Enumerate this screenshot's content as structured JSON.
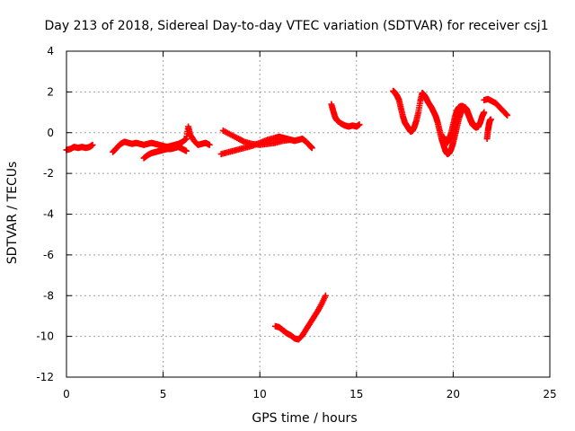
{
  "chart_data": {
    "type": "scatter",
    "title": "Day 213 of 2018, Sidereal Day-to-day VTEC variation (SDTVAR) for receiver csj1",
    "xlabel": "GPS time / hours",
    "ylabel": "SDTVAR / TECUs",
    "xlim": [
      0,
      25
    ],
    "ylim": [
      -12,
      4
    ],
    "xticks": [
      0,
      5,
      10,
      15,
      20,
      25
    ],
    "yticks": [
      -12,
      -10,
      -8,
      -6,
      -4,
      -2,
      0,
      2,
      4
    ],
    "grid": true,
    "marker": "+",
    "color": "#ff0000",
    "series": [
      {
        "name": "SDTVAR",
        "segments": [
          [
            [
              0.0,
              -0.85
            ],
            [
              0.2,
              -0.8
            ],
            [
              0.4,
              -0.7
            ],
            [
              0.6,
              -0.75
            ],
            [
              0.8,
              -0.7
            ],
            [
              1.0,
              -0.75
            ],
            [
              1.2,
              -0.7
            ],
            [
              1.35,
              -0.6
            ]
          ],
          [
            [
              2.4,
              -0.95
            ],
            [
              2.6,
              -0.75
            ],
            [
              2.8,
              -0.55
            ],
            [
              3.0,
              -0.45
            ],
            [
              3.2,
              -0.5
            ],
            [
              3.4,
              -0.55
            ],
            [
              3.6,
              -0.5
            ],
            [
              3.8,
              -0.55
            ],
            [
              4.0,
              -0.6
            ],
            [
              4.2,
              -0.55
            ],
            [
              4.4,
              -0.5
            ],
            [
              4.6,
              -0.55
            ],
            [
              4.8,
              -0.6
            ],
            [
              5.0,
              -0.65
            ],
            [
              5.2,
              -0.7
            ],
            [
              5.4,
              -0.65
            ],
            [
              5.6,
              -0.6
            ],
            [
              5.8,
              -0.55
            ],
            [
              6.0,
              -0.45
            ],
            [
              6.2,
              -0.3
            ],
            [
              6.3,
              0.3
            ],
            [
              6.4,
              -0.1
            ],
            [
              6.6,
              -0.4
            ],
            [
              6.8,
              -0.6
            ],
            [
              7.0,
              -0.55
            ],
            [
              7.2,
              -0.5
            ],
            [
              7.4,
              -0.6
            ]
          ],
          [
            [
              4.0,
              -1.25
            ],
            [
              4.2,
              -1.1
            ],
            [
              4.4,
              -1.0
            ],
            [
              4.6,
              -0.95
            ],
            [
              4.8,
              -0.9
            ],
            [
              5.0,
              -0.85
            ],
            [
              5.2,
              -0.8
            ],
            [
              5.4,
              -0.8
            ],
            [
              5.6,
              -0.75
            ],
            [
              5.8,
              -0.7
            ],
            [
              6.0,
              -0.8
            ],
            [
              6.2,
              -0.9
            ]
          ],
          [
            [
              8.0,
              -1.05
            ],
            [
              8.4,
              -0.95
            ],
            [
              8.8,
              -0.85
            ],
            [
              9.2,
              -0.75
            ],
            [
              9.6,
              -0.65
            ],
            [
              10.0,
              -0.5
            ],
            [
              10.4,
              -0.35
            ],
            [
              10.8,
              -0.25
            ],
            [
              11.0,
              -0.2
            ],
            [
              11.2,
              -0.25
            ],
            [
              11.4,
              -0.3
            ],
            [
              11.6,
              -0.35
            ],
            [
              11.8,
              -0.4
            ],
            [
              12.0,
              -0.35
            ],
            [
              12.2,
              -0.3
            ],
            [
              12.4,
              -0.45
            ],
            [
              12.6,
              -0.65
            ],
            [
              12.7,
              -0.75
            ]
          ],
          [
            [
              8.1,
              0.1
            ],
            [
              8.5,
              -0.1
            ],
            [
              8.9,
              -0.3
            ],
            [
              9.2,
              -0.45
            ],
            [
              9.6,
              -0.55
            ],
            [
              10.0,
              -0.6
            ],
            [
              10.4,
              -0.55
            ],
            [
              10.8,
              -0.5
            ],
            [
              11.2,
              -0.4
            ],
            [
              11.6,
              -0.35
            ]
          ],
          [
            [
              10.8,
              -9.5
            ],
            [
              11.0,
              -9.55
            ],
            [
              11.2,
              -9.7
            ],
            [
              11.4,
              -9.85
            ],
            [
              11.6,
              -9.95
            ],
            [
              11.8,
              -10.1
            ],
            [
              12.0,
              -10.15
            ],
            [
              12.2,
              -9.95
            ],
            [
              12.4,
              -9.65
            ],
            [
              12.6,
              -9.35
            ],
            [
              12.8,
              -9.05
            ],
            [
              13.0,
              -8.75
            ],
            [
              13.2,
              -8.4
            ],
            [
              13.4,
              -8.0
            ]
          ],
          [
            [
              13.7,
              1.4
            ],
            [
              13.8,
              1.05
            ],
            [
              13.9,
              0.75
            ],
            [
              14.0,
              0.6
            ],
            [
              14.2,
              0.45
            ],
            [
              14.4,
              0.35
            ],
            [
              14.6,
              0.3
            ],
            [
              14.8,
              0.35
            ],
            [
              15.0,
              0.3
            ],
            [
              15.15,
              0.4
            ]
          ],
          [
            [
              16.9,
              2.05
            ],
            [
              17.0,
              1.95
            ],
            [
              17.1,
              1.8
            ],
            [
              17.2,
              1.6
            ],
            [
              17.3,
              1.2
            ],
            [
              17.4,
              0.8
            ],
            [
              17.5,
              0.5
            ],
            [
              17.6,
              0.35
            ],
            [
              17.7,
              0.2
            ],
            [
              17.8,
              0.05
            ],
            [
              17.9,
              0.1
            ],
            [
              18.0,
              0.3
            ],
            [
              18.1,
              0.6
            ],
            [
              18.2,
              1.0
            ],
            [
              18.3,
              1.55
            ],
            [
              18.4,
              1.95
            ],
            [
              18.5,
              1.85
            ],
            [
              18.6,
              1.7
            ],
            [
              18.7,
              1.5
            ],
            [
              18.8,
              1.35
            ],
            [
              18.9,
              1.2
            ],
            [
              19.0,
              1.0
            ],
            [
              19.1,
              0.8
            ],
            [
              19.2,
              0.5
            ],
            [
              19.3,
              0.1
            ],
            [
              19.4,
              -0.3
            ],
            [
              19.5,
              -0.6
            ],
            [
              19.6,
              -0.9
            ],
            [
              19.7,
              -1.05
            ],
            [
              19.8,
              -1.0
            ],
            [
              19.9,
              -0.8
            ],
            [
              20.0,
              -0.5
            ],
            [
              20.1,
              -0.1
            ],
            [
              20.2,
              0.3
            ],
            [
              20.3,
              0.7
            ],
            [
              20.4,
              1.0
            ],
            [
              20.5,
              1.2
            ],
            [
              20.6,
              1.25
            ],
            [
              20.7,
              1.15
            ],
            [
              20.8,
              0.9
            ],
            [
              20.9,
              0.65
            ],
            [
              21.0,
              0.45
            ],
            [
              21.1,
              0.35
            ],
            [
              21.2,
              0.3
            ],
            [
              21.3,
              0.35
            ]
          ],
          [
            [
              19.5,
              -0.2
            ],
            [
              19.6,
              -0.4
            ],
            [
              19.7,
              -0.5
            ],
            [
              19.8,
              -0.3
            ],
            [
              19.9,
              0.0
            ],
            [
              20.0,
              0.4
            ],
            [
              20.1,
              0.8
            ],
            [
              20.2,
              1.1
            ],
            [
              20.3,
              1.25
            ],
            [
              20.4,
              1.3
            ],
            [
              20.5,
              1.3
            ],
            [
              20.6,
              1.2
            ],
            [
              20.7,
              1.05
            ],
            [
              20.8,
              0.85
            ],
            [
              20.9,
              0.6
            ],
            [
              21.0,
              0.4
            ],
            [
              21.1,
              0.3
            ],
            [
              21.2,
              0.25
            ],
            [
              21.3,
              0.3
            ],
            [
              21.4,
              0.5
            ],
            [
              21.5,
              0.8
            ],
            [
              21.6,
              1.0
            ]
          ],
          [
            [
              21.75,
              -0.3
            ],
            [
              21.8,
              0.1
            ],
            [
              21.85,
              0.4
            ],
            [
              21.9,
              0.6
            ],
            [
              21.95,
              0.65
            ]
          ],
          [
            [
              21.6,
              1.6
            ],
            [
              21.8,
              1.65
            ],
            [
              22.0,
              1.55
            ],
            [
              22.2,
              1.45
            ],
            [
              22.4,
              1.25
            ],
            [
              22.6,
              1.05
            ],
            [
              22.8,
              0.85
            ]
          ]
        ]
      }
    ]
  }
}
